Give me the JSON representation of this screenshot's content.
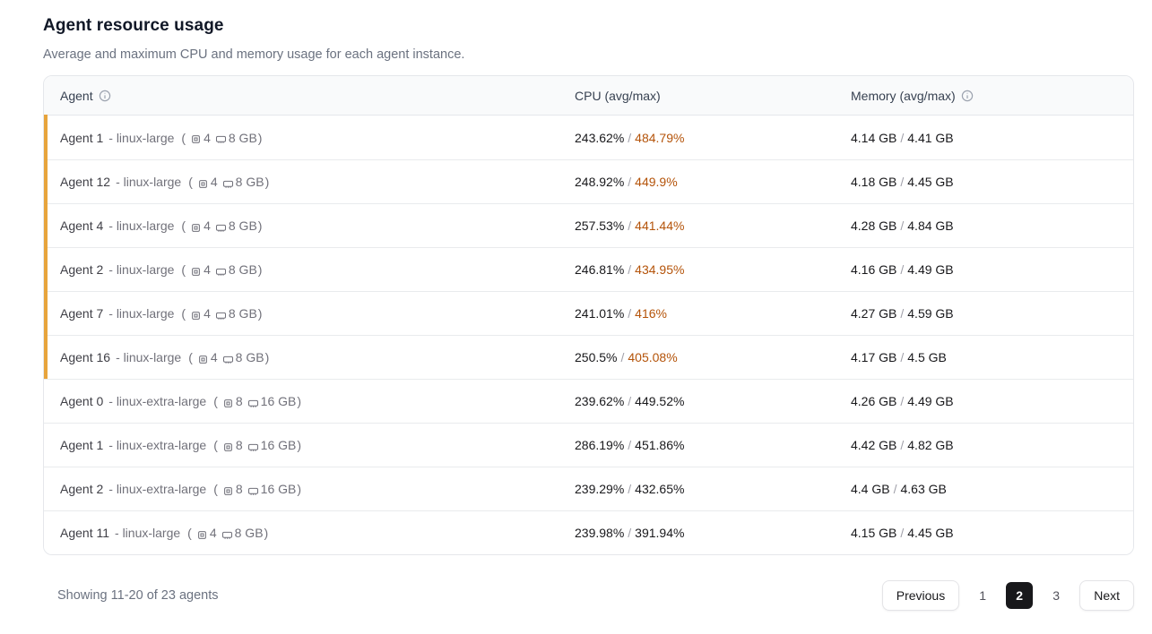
{
  "page": {
    "title": "Agent resource usage",
    "subtitle": "Average and maximum CPU and memory usage for each agent instance."
  },
  "colors": {
    "accent_bar": "#E7A43C",
    "over_limit_text": "#B45309"
  },
  "table": {
    "columns": {
      "agent": "Agent",
      "cpu": "CPU (avg/max)",
      "memory": "Memory (avg/max)"
    },
    "spec_open": "(",
    "spec_close": ")",
    "separator": "/",
    "rows": [
      {
        "name": "Agent 1",
        "type": "- linux-large",
        "cpus": "4",
        "mem": "8 GB",
        "cpu_avg": "243.62%",
        "cpu_max": "484.79%",
        "mem_avg": "4.14 GB",
        "mem_max": "4.41 GB",
        "over_limit": true
      },
      {
        "name": "Agent 12",
        "type": "- linux-large",
        "cpus": "4",
        "mem": "8 GB",
        "cpu_avg": "248.92%",
        "cpu_max": "449.9%",
        "mem_avg": "4.18 GB",
        "mem_max": "4.45 GB",
        "over_limit": true
      },
      {
        "name": "Agent 4",
        "type": "- linux-large",
        "cpus": "4",
        "mem": "8 GB",
        "cpu_avg": "257.53%",
        "cpu_max": "441.44%",
        "mem_avg": "4.28 GB",
        "mem_max": "4.84 GB",
        "over_limit": true
      },
      {
        "name": "Agent 2",
        "type": "- linux-large",
        "cpus": "4",
        "mem": "8 GB",
        "cpu_avg": "246.81%",
        "cpu_max": "434.95%",
        "mem_avg": "4.16 GB",
        "mem_max": "4.49 GB",
        "over_limit": true
      },
      {
        "name": "Agent 7",
        "type": "- linux-large",
        "cpus": "4",
        "mem": "8 GB",
        "cpu_avg": "241.01%",
        "cpu_max": "416%",
        "mem_avg": "4.27 GB",
        "mem_max": "4.59 GB",
        "over_limit": true
      },
      {
        "name": "Agent 16",
        "type": "- linux-large",
        "cpus": "4",
        "mem": "8 GB",
        "cpu_avg": "250.5%",
        "cpu_max": "405.08%",
        "mem_avg": "4.17 GB",
        "mem_max": "4.5 GB",
        "over_limit": true
      },
      {
        "name": "Agent 0",
        "type": "- linux-extra-large",
        "cpus": "8",
        "mem": "16 GB",
        "cpu_avg": "239.62%",
        "cpu_max": "449.52%",
        "mem_avg": "4.26 GB",
        "mem_max": "4.49 GB",
        "over_limit": false
      },
      {
        "name": "Agent 1",
        "type": "- linux-extra-large",
        "cpus": "8",
        "mem": "16 GB",
        "cpu_avg": "286.19%",
        "cpu_max": "451.86%",
        "mem_avg": "4.42 GB",
        "mem_max": "4.82 GB",
        "over_limit": false
      },
      {
        "name": "Agent 2",
        "type": "- linux-extra-large",
        "cpus": "8",
        "mem": "16 GB",
        "cpu_avg": "239.29%",
        "cpu_max": "432.65%",
        "mem_avg": "4.4 GB",
        "mem_max": "4.63 GB",
        "over_limit": false
      },
      {
        "name": "Agent 11",
        "type": "- linux-large",
        "cpus": "4",
        "mem": "8 GB",
        "cpu_avg": "239.98%",
        "cpu_max": "391.94%",
        "mem_avg": "4.15 GB",
        "mem_max": "4.45 GB",
        "over_limit": false
      }
    ]
  },
  "footer": {
    "showing": "Showing 11-20 of 23 agents",
    "previous_label": "Previous",
    "pages": [
      "1",
      "2",
      "3"
    ],
    "active_page": "2",
    "next_label": "Next"
  }
}
